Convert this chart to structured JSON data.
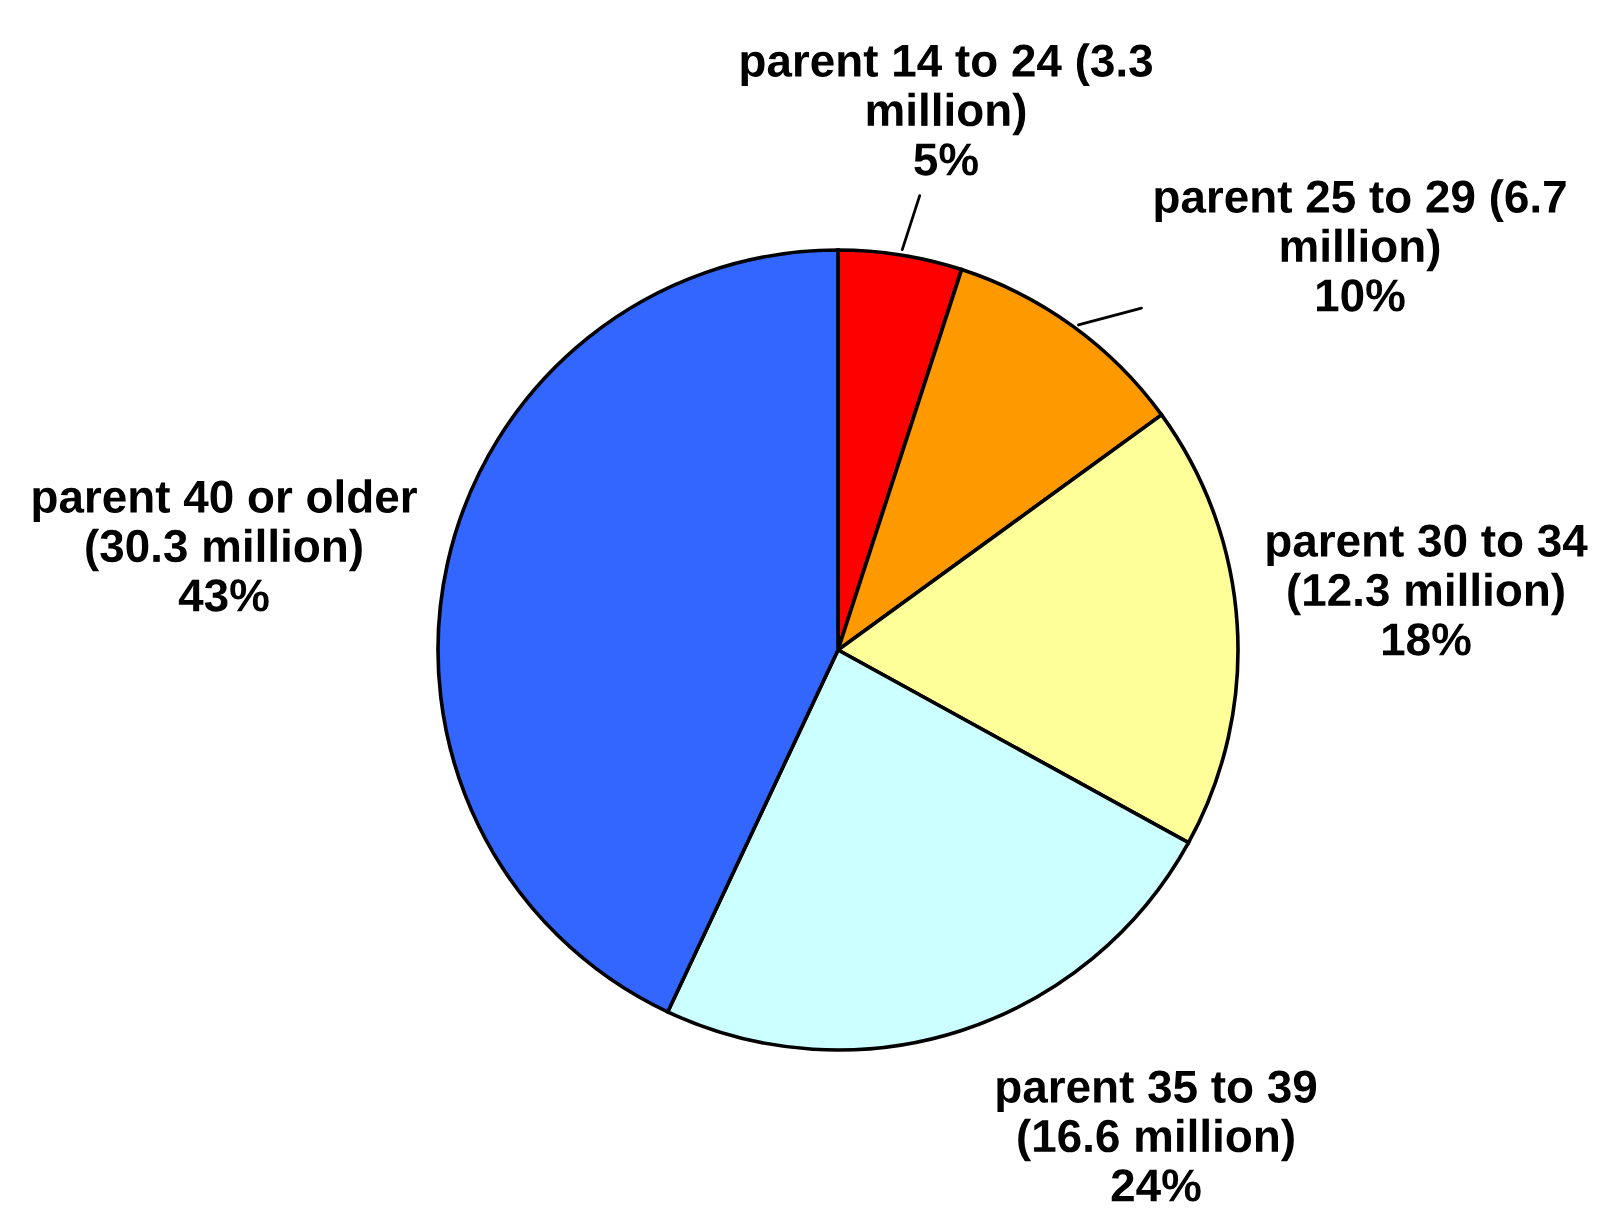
{
  "chart_data": {
    "type": "pie",
    "categories": [
      "parent 14 to 24 (3.3\nmillion)",
      "parent 25 to 29 (6.7\nmillion)",
      "parent 30 to 34\n(12.3 million)",
      "parent 35 to 39\n(16.6 million)",
      "parent 40 or older\n(30.3 million)"
    ],
    "values": [
      5,
      10,
      18,
      24,
      43
    ],
    "value_labels": [
      "5%",
      "10%",
      "18%",
      "24%",
      "43%"
    ],
    "colors": [
      "#ff0000",
      "#ff9900",
      "#ffff99",
      "#ccffff",
      "#3366ff"
    ],
    "legend": false
  }
}
